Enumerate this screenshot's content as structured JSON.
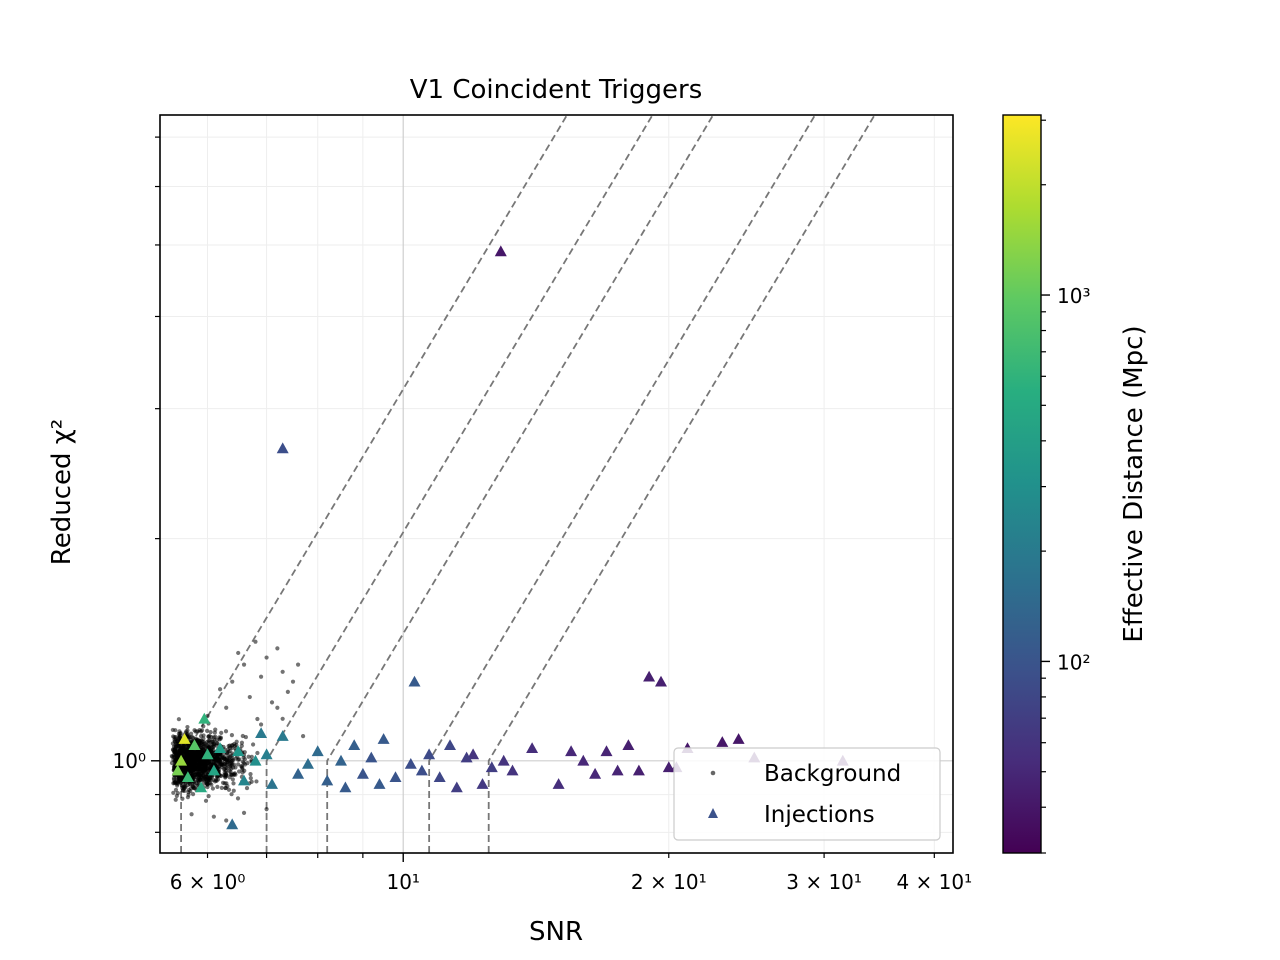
{
  "chart_data": {
    "type": "scatter",
    "title": "V1 Coincident Triggers",
    "xlabel": "SNR",
    "ylabel": "Reduced χ²",
    "x_scale": "log",
    "y_scale": "log",
    "xlim": [
      5.3,
      42
    ],
    "ylim": [
      0.75,
      7.5
    ],
    "grid": true,
    "legend_position": "lower right",
    "x_ticks": [
      {
        "value": 6,
        "label": "6 × 10⁰"
      },
      {
        "value": 10,
        "label": "10¹"
      },
      {
        "value": 20,
        "label": "2 × 10¹"
      },
      {
        "value": 30,
        "label": "3 × 10¹"
      },
      {
        "value": 40,
        "label": "4 × 10¹"
      }
    ],
    "y_ticks": [
      {
        "value": 1,
        "label": "10⁰"
      }
    ],
    "colorbar": {
      "label": "Effective Distance (Mpc)",
      "scale": "log",
      "colormap": "viridis",
      "range": [
        30,
        3100
      ],
      "ticks": [
        {
          "value": 100,
          "label": "10²"
        },
        {
          "value": 1000,
          "label": "10³"
        }
      ]
    },
    "series": [
      {
        "name": "Background",
        "marker": "dot",
        "color": "#000000",
        "points": [
          [
            5.8,
            1.1
          ],
          [
            6.0,
            1.15
          ],
          [
            6.3,
            1.18
          ],
          [
            6.5,
            1.4
          ],
          [
            6.6,
            1.35
          ],
          [
            6.8,
            1.45
          ],
          [
            6.9,
            1.3
          ],
          [
            7.0,
            1.38
          ],
          [
            7.2,
            1.42
          ],
          [
            7.5,
            1.28
          ],
          [
            7.3,
            1.32
          ],
          [
            6.2,
            1.25
          ],
          [
            6.7,
            1.22
          ],
          [
            7.1,
            1.2
          ],
          [
            7.6,
            1.35
          ],
          [
            7.4,
            1.24
          ],
          [
            6.4,
            1.28
          ],
          [
            5.9,
            1.08
          ],
          [
            6.1,
            0.84
          ],
          [
            6.3,
            0.83
          ],
          [
            6.6,
            0.85
          ],
          [
            7.0,
            0.86
          ],
          [
            7.2,
            1.18
          ],
          [
            6.9,
            1.12
          ],
          [
            7.7,
            1.08
          ],
          [
            7.3,
            1.14
          ]
        ]
      },
      {
        "name": "Injections",
        "marker": "triangle",
        "points": [
          [
            12.9,
            4.9,
            40
          ],
          [
            7.3,
            2.65,
            90
          ],
          [
            5.95,
            1.14,
            600
          ],
          [
            10.3,
            1.28,
            110
          ],
          [
            19.0,
            1.3,
            45
          ],
          [
            19.6,
            1.28,
            45
          ],
          [
            24.0,
            1.07,
            40
          ],
          [
            23.0,
            1.06,
            40
          ],
          [
            25.0,
            1.01,
            40
          ],
          [
            31.5,
            1.0,
            38
          ],
          [
            21.0,
            1.04,
            40
          ],
          [
            18.0,
            1.05,
            45
          ],
          [
            20.0,
            0.98,
            45
          ],
          [
            16.0,
            1.0,
            50
          ],
          [
            14.0,
            1.04,
            55
          ],
          [
            13.0,
            1.0,
            60
          ],
          [
            11.3,
            1.05,
            80
          ],
          [
            10.2,
            0.99,
            90
          ],
          [
            9.5,
            1.07,
            110
          ],
          [
            8.8,
            1.05,
            120
          ],
          [
            8.0,
            1.03,
            150
          ],
          [
            7.3,
            1.08,
            200
          ],
          [
            7.0,
            1.02,
            220
          ],
          [
            6.8,
            1.0,
            300
          ],
          [
            6.5,
            1.03,
            350
          ],
          [
            6.2,
            1.04,
            400
          ],
          [
            6.0,
            1.02,
            600
          ],
          [
            5.8,
            1.05,
            900
          ],
          [
            5.65,
            1.07,
            2500
          ],
          [
            5.6,
            1.0,
            1500
          ],
          [
            5.55,
            0.97,
            1200
          ],
          [
            5.7,
            0.95,
            700
          ],
          [
            5.9,
            0.92,
            500
          ],
          [
            6.1,
            0.97,
            450
          ],
          [
            6.4,
            0.82,
            150
          ],
          [
            6.6,
            0.94,
            250
          ],
          [
            7.1,
            0.93,
            180
          ],
          [
            7.6,
            0.96,
            130
          ],
          [
            8.2,
            0.94,
            120
          ],
          [
            8.6,
            0.92,
            110
          ],
          [
            9.0,
            0.96,
            100
          ],
          [
            9.4,
            0.93,
            110
          ],
          [
            9.8,
            0.95,
            100
          ],
          [
            10.5,
            0.97,
            90
          ],
          [
            11.0,
            0.95,
            80
          ],
          [
            11.5,
            0.92,
            70
          ],
          [
            12.3,
            0.93,
            65
          ],
          [
            12.6,
            0.98,
            70
          ],
          [
            13.3,
            0.97,
            60
          ],
          [
            15.0,
            0.93,
            55
          ],
          [
            16.5,
            0.96,
            50
          ],
          [
            17.5,
            0.97,
            48
          ],
          [
            18.5,
            0.97,
            45
          ],
          [
            20.4,
            0.98,
            42
          ],
          [
            15.5,
            1.03,
            50
          ],
          [
            17.0,
            1.03,
            48
          ],
          [
            12.0,
            1.02,
            60
          ],
          [
            11.8,
            1.01,
            70
          ],
          [
            9.2,
            1.01,
            100
          ],
          [
            8.5,
            1.0,
            130
          ],
          [
            6.9,
            1.09,
            200
          ],
          [
            7.8,
            0.99,
            160
          ],
          [
            10.7,
            1.02,
            85
          ]
        ]
      }
    ],
    "threshold_curves": [
      {
        "break_snr": 5.6
      },
      {
        "break_snr": 7.0
      },
      {
        "break_snr": 8.2
      },
      {
        "break_snr": 10.7
      },
      {
        "break_snr": 12.5
      }
    ]
  }
}
